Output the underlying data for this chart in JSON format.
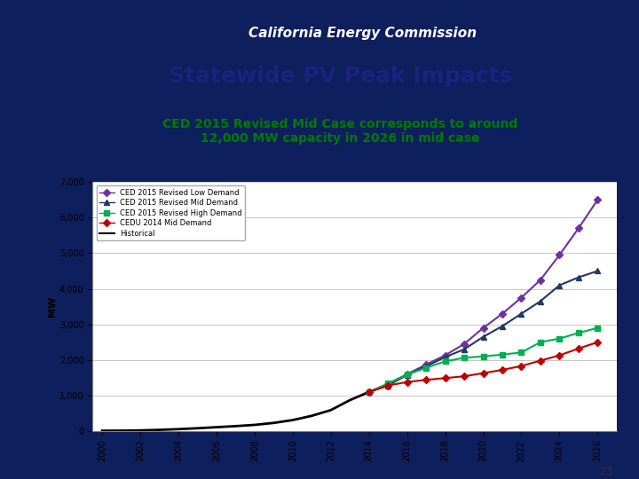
{
  "title": "Statewide PV Peak Impacts",
  "subtitle": "CED 2015 Revised Mid Case corresponds to around\n12,000 MW capacity in 2026 in mid case",
  "header": "California Energy Commission",
  "ylabel": "MW",
  "page_number": "23",
  "bg_dark": "#0d1f5c",
  "bg_white": "#ffffff",
  "header_text_color": "#ffffff",
  "title_color": "#1a237e",
  "subtitle_color": "#007b00",
  "historical": {
    "label": "Historical",
    "color": "#000000",
    "marker": "None",
    "markersize": 3,
    "linewidth": 2.0,
    "data_years": [
      2000,
      2001,
      2002,
      2003,
      2004,
      2005,
      2006,
      2007,
      2008,
      2009,
      2010,
      2011,
      2012,
      2013,
      2014
    ],
    "data_values": [
      10,
      12,
      20,
      35,
      55,
      80,
      110,
      140,
      175,
      230,
      310,
      430,
      590,
      870,
      1100
    ]
  },
  "low_demand": {
    "label": "CED 2015 Revised Low Demand",
    "color": "#7030a0",
    "marker": "D",
    "markersize": 4,
    "linewidth": 1.5,
    "data_years": [
      2014,
      2015,
      2016,
      2017,
      2018,
      2019,
      2020,
      2021,
      2022,
      2023,
      2024,
      2025,
      2026
    ],
    "data_values": [
      1100,
      1320,
      1600,
      1870,
      2130,
      2450,
      2900,
      3300,
      3750,
      4250,
      4950,
      5700,
      6500
    ]
  },
  "mid_demand": {
    "label": "CED 2015 Revised Mid Demand",
    "color": "#1f3864",
    "marker": "^",
    "markersize": 4,
    "linewidth": 1.5,
    "data_years": [
      2014,
      2015,
      2016,
      2017,
      2018,
      2019,
      2020,
      2021,
      2022,
      2023,
      2024,
      2025,
      2026
    ],
    "data_values": [
      1100,
      1280,
      1580,
      1820,
      2080,
      2300,
      2650,
      2950,
      3300,
      3650,
      4100,
      4320,
      4500
    ]
  },
  "high_demand": {
    "label": "CED 2015 Revised High Demand",
    "color": "#00b050",
    "marker": "s",
    "markersize": 4,
    "linewidth": 1.5,
    "data_years": [
      2014,
      2015,
      2016,
      2017,
      2018,
      2019,
      2020,
      2021,
      2022,
      2023,
      2024,
      2025,
      2026
    ],
    "data_values": [
      1100,
      1340,
      1590,
      1780,
      1960,
      2060,
      2100,
      2150,
      2210,
      2500,
      2600,
      2760,
      2900
    ]
  },
  "cedu_2014": {
    "label": "CEDU 2014 Mid Demand",
    "color": "#c00000",
    "marker": "D",
    "markersize": 4,
    "linewidth": 1.5,
    "data_years": [
      2014,
      2015,
      2016,
      2017,
      2018,
      2019,
      2020,
      2021,
      2022,
      2023,
      2024,
      2025,
      2026
    ],
    "data_values": [
      1100,
      1280,
      1380,
      1440,
      1490,
      1540,
      1630,
      1720,
      1830,
      1980,
      2130,
      2320,
      2500
    ]
  },
  "ylim": [
    0,
    7000
  ],
  "yticks": [
    0,
    1000,
    2000,
    3000,
    4000,
    5000,
    6000,
    7000
  ],
  "xtick_years": [
    2000,
    2002,
    2004,
    2006,
    2008,
    2010,
    2012,
    2014,
    2016,
    2018,
    2020,
    2022,
    2024,
    2026
  ]
}
